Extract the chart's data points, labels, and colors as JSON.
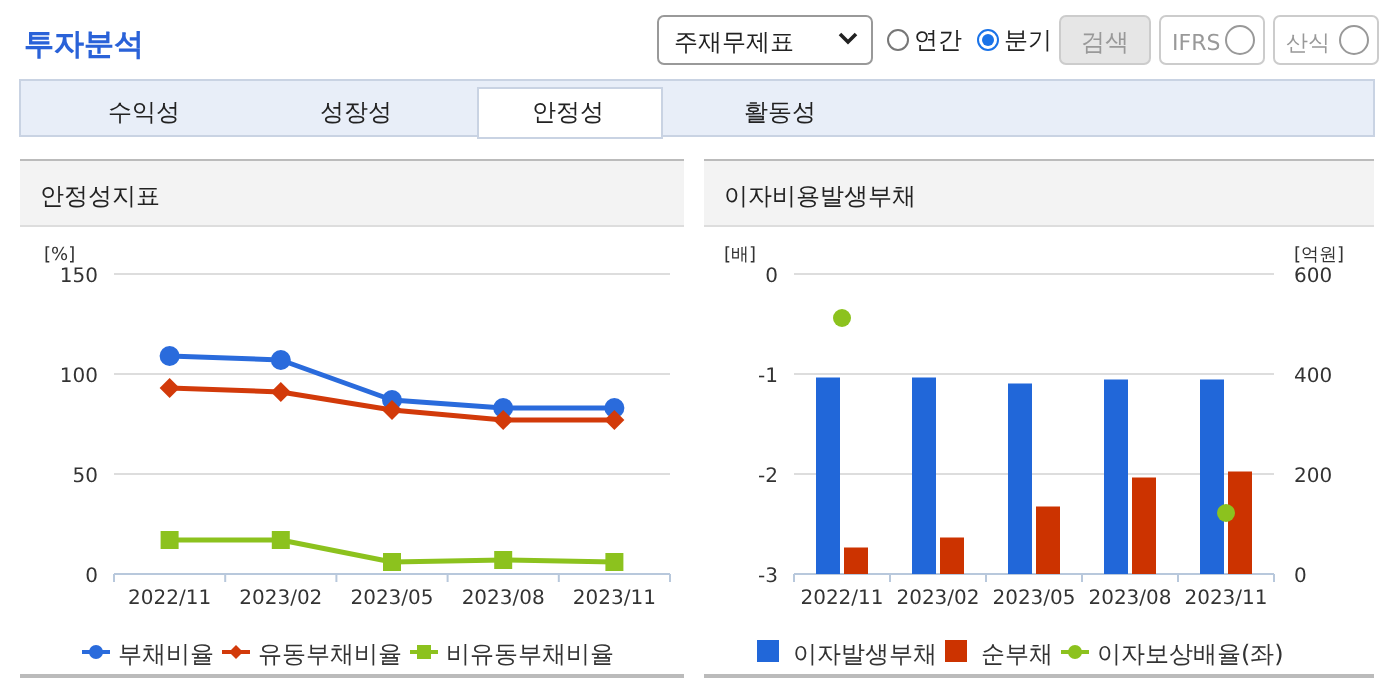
{
  "chart_data": [
    {
      "type": "other",
      "title": "투자분석",
      "annotations": [
        "주재무제표",
        "연간",
        "분기",
        "검색",
        "IFRS",
        "산식",
        "수익성",
        "성장성",
        "안정성",
        "활동성"
      ]
    },
    {
      "type": "line",
      "title": "안정성지표",
      "ylabel": "[%]",
      "categories": [
        "2022/11",
        "2023/02",
        "2023/05",
        "2023/08",
        "2023/11"
      ],
      "ylim": [
        0,
        150
      ],
      "yticks": [
        0,
        50,
        100,
        150
      ],
      "grid": "y",
      "legend": "bottom",
      "series": [
        {
          "name": "부채비율",
          "color": "#2a6bdc",
          "marker": "circle",
          "values": [
            109,
            107,
            87,
            83,
            83
          ]
        },
        {
          "name": "유동부채비율",
          "color": "#d23a0a",
          "marker": "diamond",
          "values": [
            93,
            91,
            82,
            77,
            77
          ]
        },
        {
          "name": "비유동부채비율",
          "color": "#8cc21e",
          "marker": "square",
          "values": [
            17,
            17,
            6,
            7,
            6
          ]
        }
      ]
    },
    {
      "type": "bar",
      "title": "이자비용발생부채",
      "ylabel": "[배]",
      "y2label": "[억원]",
      "categories": [
        "2022/11",
        "2023/02",
        "2023/05",
        "2023/08",
        "2023/11"
      ],
      "ylim": [
        -3,
        0
      ],
      "yticks": [
        -3,
        -2,
        -1,
        0
      ],
      "y2lim": [
        0,
        600
      ],
      "y2ticks": [
        0,
        200,
        400,
        600
      ],
      "grid": "y",
      "legend": "bottom",
      "series": [
        {
          "name": "이자발생부채",
          "color": "#2167d9",
          "axis": "y2",
          "values": [
            393,
            393,
            381,
            389,
            389
          ]
        },
        {
          "name": "순부채",
          "color": "#cc3300",
          "axis": "y2",
          "values": [
            53,
            73,
            135,
            193,
            205
          ]
        },
        {
          "name": "이자보상배율(좌)",
          "type": "scatter",
          "color": "#8cc21e",
          "marker": "circle",
          "values": [
            -0.44,
            null,
            null,
            null,
            -2.39
          ]
        }
      ]
    }
  ]
}
